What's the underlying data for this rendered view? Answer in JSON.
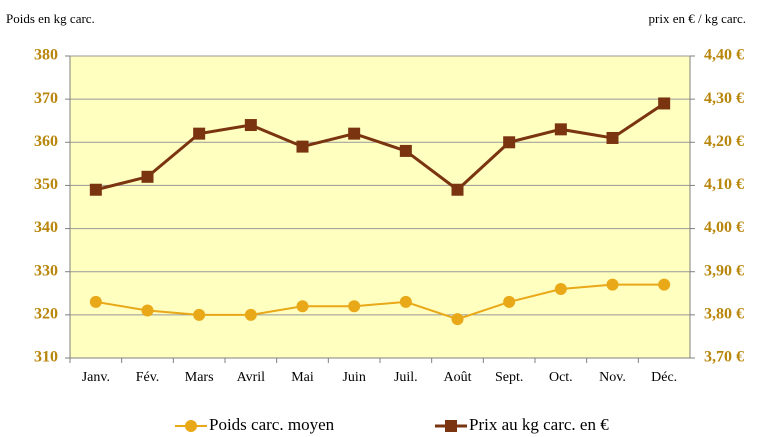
{
  "chart_data": {
    "type": "line",
    "y_label": "Poids en kg carc.",
    "y2_label": "prix en € / kg carc.",
    "categories": [
      "Janv.",
      "Fév.",
      "Mars",
      "Avril",
      "Mai",
      "Juin",
      "Juil.",
      "Août",
      "Sept.",
      "Oct.",
      "Nov.",
      "Déc."
    ],
    "series": [
      {
        "name": "Poids carc. moyen",
        "color": "#e8a818",
        "values": [
          323,
          321,
          320,
          320,
          322,
          322,
          323,
          319,
          323,
          326,
          327,
          327
        ]
      },
      {
        "name": "Prix au kg carc. en €",
        "color": "#7a3410",
        "axis": "y2",
        "values": [
          4.09,
          4.12,
          4.22,
          4.24,
          4.19,
          4.22,
          4.18,
          4.09,
          4.2,
          4.23,
          4.21,
          4.29
        ]
      }
    ],
    "ylim": [
      310,
      380
    ],
    "yticks": [
      310,
      320,
      330,
      340,
      350,
      360,
      370,
      380
    ],
    "y2lim": [
      3.7,
      4.4
    ],
    "y2ticks": [
      {
        "value": 3.7,
        "label": "3,70 €"
      },
      {
        "value": 3.8,
        "label": "3,80 €"
      },
      {
        "value": 3.9,
        "label": "3,90 €"
      },
      {
        "value": 4.0,
        "label": "4,00 €"
      },
      {
        "value": 4.1,
        "label": "4,10 €"
      },
      {
        "value": 4.2,
        "label": "4,20 €"
      },
      {
        "value": 4.3,
        "label": "4,30 €"
      },
      {
        "value": 4.4,
        "label": "4,40 €"
      }
    ],
    "grid": true,
    "legend": "bottom"
  }
}
